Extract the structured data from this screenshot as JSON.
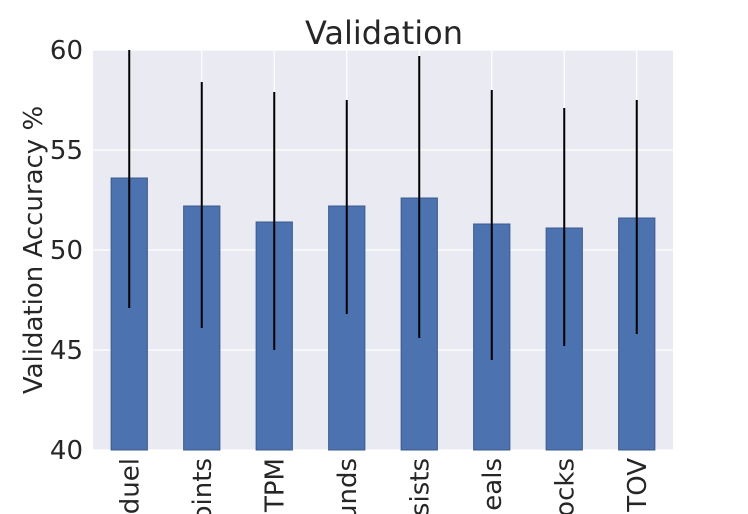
{
  "chart_data": {
    "type": "bar",
    "title": "Validation",
    "xlabel": "",
    "ylabel": "Validation Accuracy %",
    "ylim": [
      40,
      60
    ],
    "yticks": [
      "40",
      "45",
      "50",
      "55",
      "60"
    ],
    "categories": [
      "duel",
      "oints",
      "TPM",
      "unds",
      "sists",
      "eals",
      "ocks",
      "TOV"
    ],
    "values": [
      53.6,
      52.2,
      51.4,
      52.2,
      52.6,
      51.3,
      51.1,
      51.6
    ],
    "error_low": [
      47.1,
      46.1,
      45.0,
      46.8,
      45.6,
      44.5,
      45.2,
      45.8
    ],
    "error_high": [
      60.0,
      58.4,
      57.9,
      57.5,
      59.7,
      58.0,
      57.1,
      57.5
    ],
    "grid": true,
    "colors": {
      "bar": "#4c72b0",
      "bar_edge": "#3b5a8c",
      "plot_bg": "#eaeaf2",
      "grid": "#ffffff",
      "error_bar": "#000000"
    }
  }
}
